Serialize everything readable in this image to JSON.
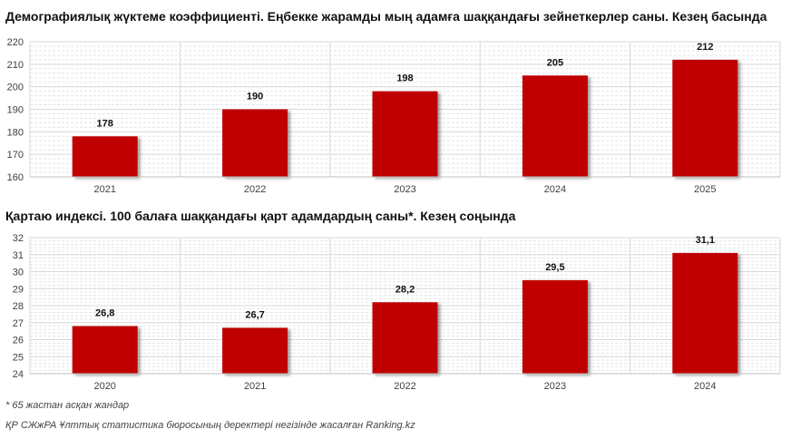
{
  "colors": {
    "bar": "#C00000",
    "grid": "#D9D9D9",
    "axis": "#BFBFBF"
  },
  "chart_data": [
    {
      "type": "bar",
      "title": "Демографиялық жүктеме коэффициенті. Еңбекке жарамды мың адамға шаққандағы зейнеткерлер саны. Кезең басында",
      "categories": [
        "2021",
        "2022",
        "2023",
        "2024",
        "2025"
      ],
      "values": [
        178,
        190,
        198,
        205,
        212
      ],
      "value_labels": [
        "178",
        "190",
        "198",
        "205",
        "212"
      ],
      "ylim": [
        160,
        220
      ],
      "yticks": [
        160,
        170,
        180,
        190,
        200,
        210,
        220
      ],
      "ytick_labels": [
        "160",
        "170",
        "180",
        "190",
        "200",
        "210",
        "220"
      ],
      "minor_step": 2,
      "xlabel": "",
      "ylabel": ""
    },
    {
      "type": "bar",
      "title": "Қартаю индексі. 100 балаға шаққандағы қарт адамдардың саны*. Кезең соңында",
      "categories": [
        "2020",
        "2021",
        "2022",
        "2023",
        "2024"
      ],
      "values": [
        26.8,
        26.7,
        28.2,
        29.5,
        31.1
      ],
      "value_labels": [
        "26,8",
        "26,7",
        "28,2",
        "29,5",
        "31,1"
      ],
      "ylim": [
        24,
        32
      ],
      "yticks": [
        24,
        25,
        26,
        27,
        28,
        29,
        30,
        31,
        32
      ],
      "ytick_labels": [
        "24",
        "25",
        "26",
        "27",
        "28",
        "29",
        "30",
        "31",
        "32"
      ],
      "minor_step": 0.2,
      "xlabel": "",
      "ylabel": ""
    }
  ],
  "footnote": "* 65 жастан асқан жандар",
  "source": "ҚР СЖжРА Ұлттық статистика бюросының деректері негізінде жасалған Ranking.kz"
}
